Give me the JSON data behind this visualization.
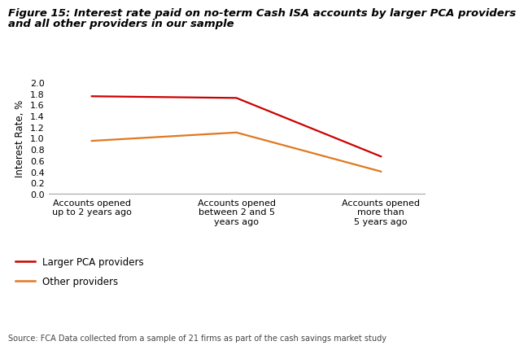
{
  "title_line1": "Figure 15: Interest rate paid on no-term Cash ISA accounts by larger PCA providers",
  "title_line2": "and all other providers in our sample",
  "source": "Source: FCA Data collected from a sample of 21 firms as part of the cash savings market study",
  "ylabel": "Interest Rate, %",
  "x_labels": [
    "Accounts opened\nup to 2 years ago",
    "Accounts opened\nbetween 2 and 5\nyears ago",
    "Accounts opened\nmore than\n5 years ago"
  ],
  "larger_pca": [
    1.75,
    1.72,
    0.67
  ],
  "other_providers": [
    0.95,
    1.1,
    0.4
  ],
  "larger_pca_color": "#cc0000",
  "other_providers_color": "#e07820",
  "ylim": [
    0,
    2.0
  ],
  "yticks": [
    0,
    0.2,
    0.4,
    0.6,
    0.8,
    1.0,
    1.2,
    1.4,
    1.6,
    1.8,
    2.0
  ],
  "legend_larger": "Larger PCA providers",
  "legend_other": "Other providers",
  "background_color": "#ffffff",
  "title_fontsize": 9.5,
  "axis_fontsize": 8.5,
  "tick_fontsize": 8,
  "legend_fontsize": 8.5,
  "source_fontsize": 7
}
